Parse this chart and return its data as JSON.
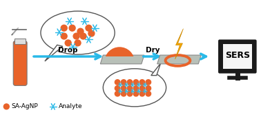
{
  "bg_color": "#ffffff",
  "tube_color": "#e8632a",
  "tube_outline": "#777777",
  "arrow_color": "#29b9e8",
  "drop_label": "Drop",
  "dry_label": "Dry",
  "sers_label": "SERS",
  "legend_sa_label": "SA-AgNP",
  "legend_an_label": "Analyte",
  "orange_dot_color": "#e8632a",
  "blue_star_color": "#29b9e8",
  "substrate_color": "#b8c0b8",
  "substrate_edge": "#888888",
  "droplet_color": "#e8632a",
  "ring_color": "#e8632a",
  "monitor_bg": "#1a1a1a",
  "monitor_screen": "#f5f5f5",
  "lightning_color": "#f5a800",
  "font_size_label": 7.5,
  "font_size_sers": 9,
  "font_size_legend": 6.5,
  "bubble_ec": "#555555",
  "bubble_lw": 1.0
}
